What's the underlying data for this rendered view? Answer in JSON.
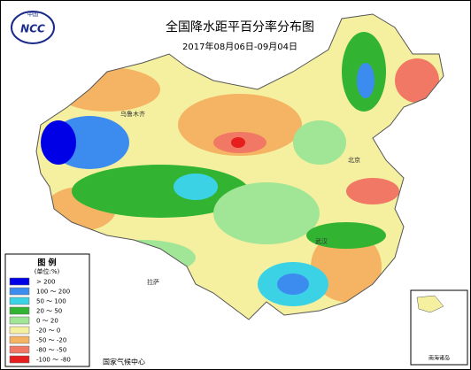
{
  "header": {
    "logo_text": "中国",
    "logo_abbr": "NCC",
    "title": "全国降水距平百分率分布图",
    "subtitle": "2017年08月06日-09月04日"
  },
  "legend": {
    "title": "图 例",
    "unit": "(单位:%)",
    "items": [
      {
        "label": "> 200",
        "color": "#0000e6"
      },
      {
        "label": "100 ～ 200",
        "color": "#3c8cf0"
      },
      {
        "label": "50 ～ 100",
        "color": "#3cd2e6"
      },
      {
        "label": "20 ～ 50",
        "color": "#32b432"
      },
      {
        "label": "0 ～ 20",
        "color": "#a0e696"
      },
      {
        "label": "-20 ～ 0",
        "color": "#f5f0a0"
      },
      {
        "label": "-50 ～ -20",
        "color": "#f5b464"
      },
      {
        "label": "-80 ～ -50",
        "color": "#f07864"
      },
      {
        "label": "-100 ～ -80",
        "color": "#e61e1e"
      }
    ]
  },
  "places": [
    "乌鲁木齐",
    "拉萨",
    "北京",
    "武汉"
  ],
  "footer": "国家气候中心",
  "inset_label": "南海诸岛"
}
